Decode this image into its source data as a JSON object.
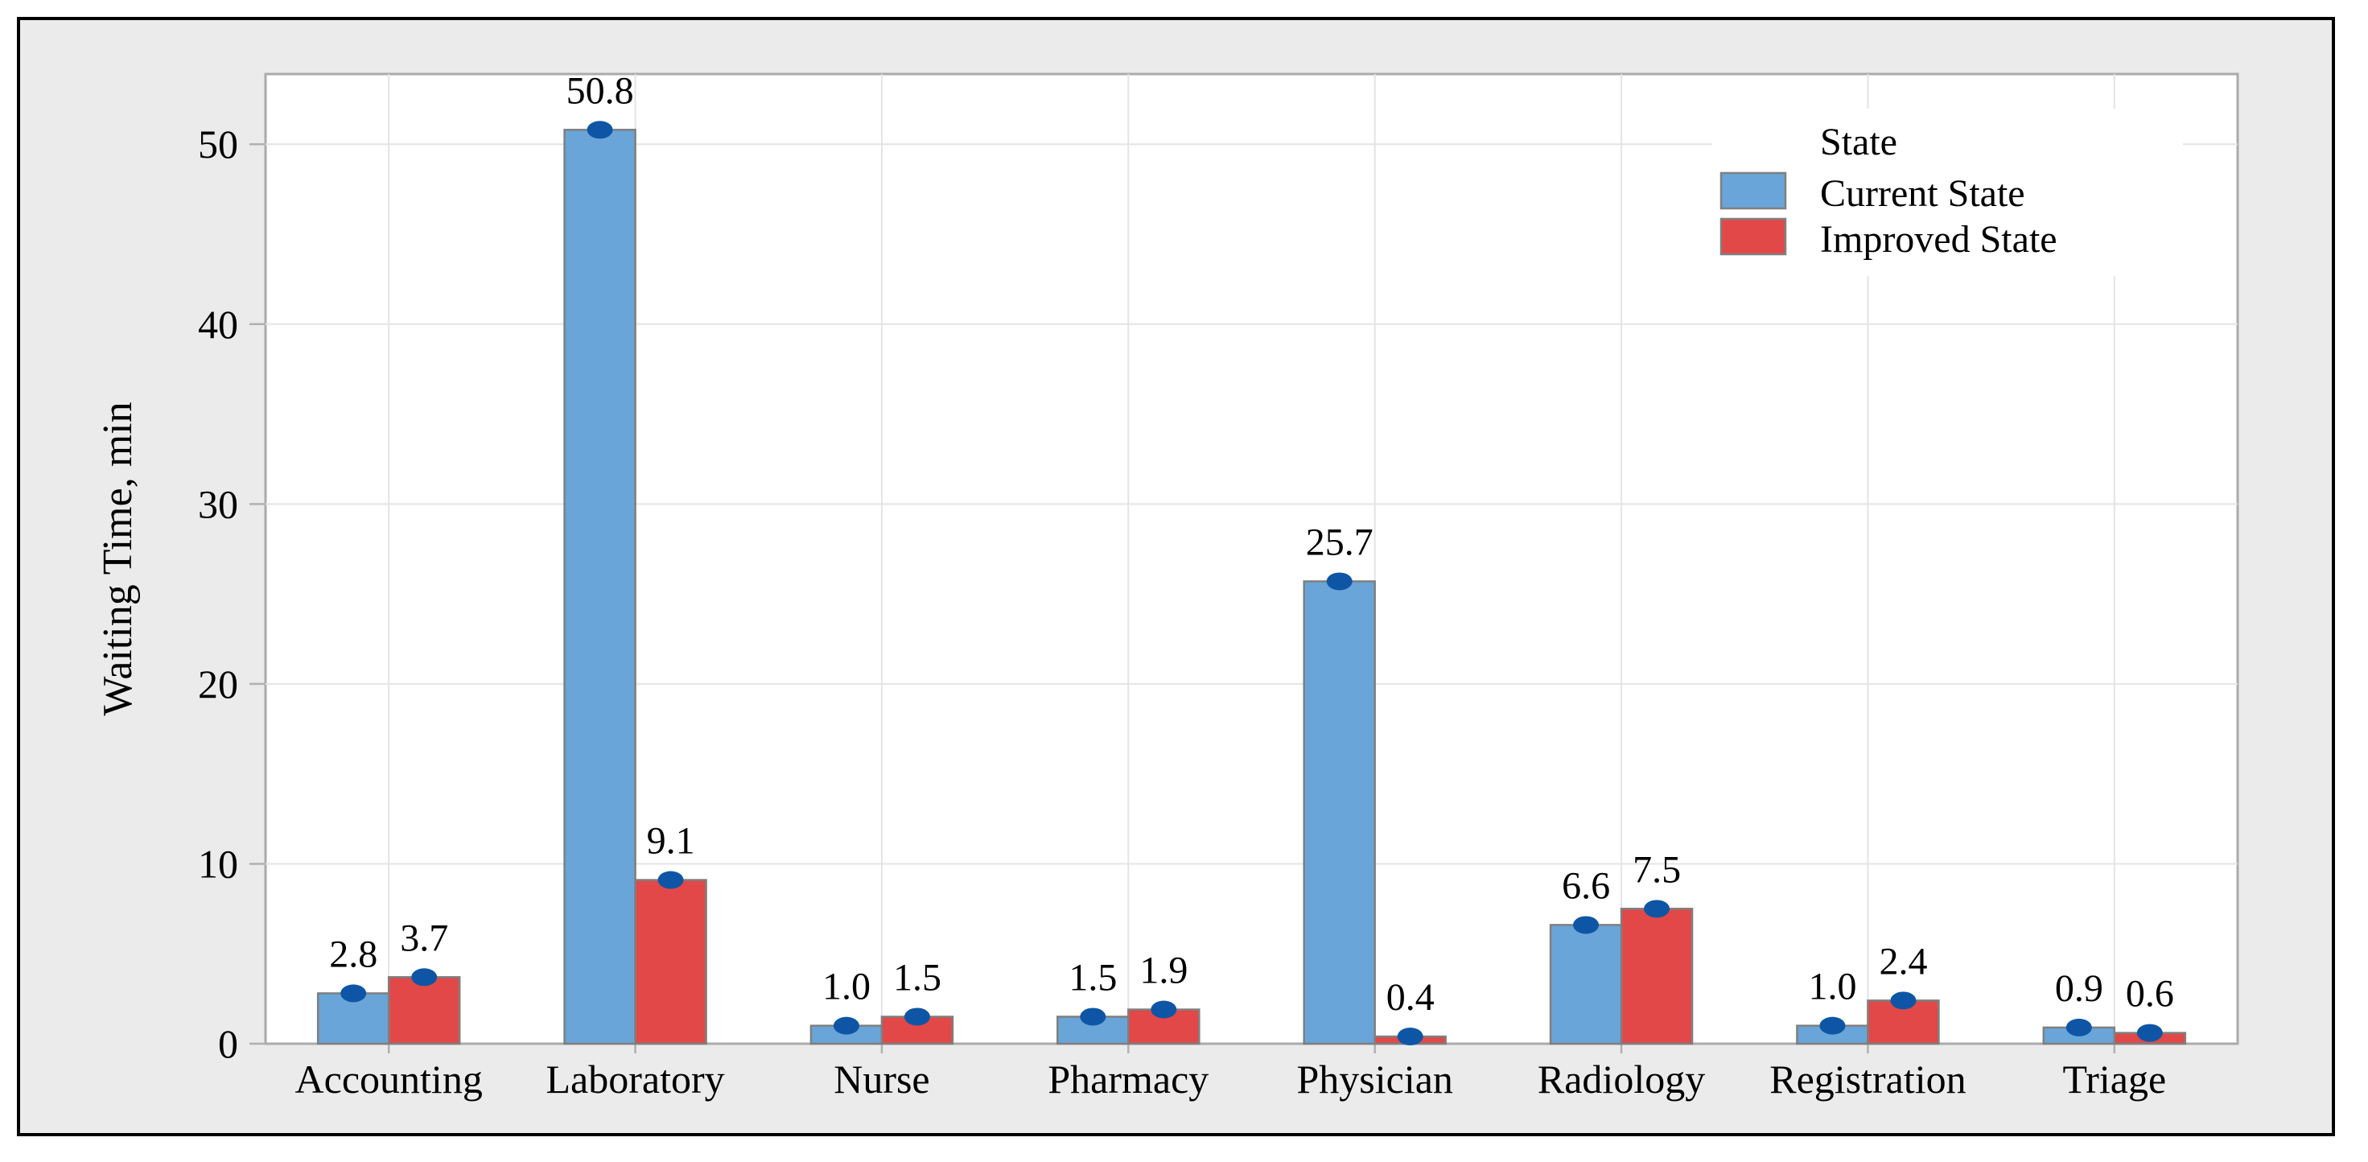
{
  "chart_data": {
    "type": "bar",
    "title": "",
    "xlabel": "",
    "ylabel": "Waiting Time, min",
    "categories": [
      "Accounting",
      "Laboratory",
      "Nurse",
      "Pharmacy",
      "Physician",
      "Radiology",
      "Registration",
      "Triage"
    ],
    "series": [
      {
        "name": "Current State",
        "color": "#69A5D9",
        "values": [
          2.8,
          50.8,
          1.0,
          1.5,
          25.7,
          6.6,
          1.0,
          0.9
        ]
      },
      {
        "name": "Improved State",
        "color": "#E24848",
        "values": [
          3.7,
          9.1,
          1.5,
          1.9,
          0.4,
          7.5,
          2.4,
          0.6
        ]
      }
    ],
    "value_labels": [
      "2.8",
      "3.7",
      "50.8",
      "9.1",
      "1.0",
      "1.5",
      "1.5",
      "1.9",
      "25.7",
      "0.4",
      "6.6",
      "7.5",
      "1.0",
      "2.4",
      "0.9",
      "0.6"
    ],
    "legend": {
      "title": "State",
      "position": "top-right",
      "entries": [
        "Current State",
        "Improved State"
      ]
    },
    "yticks": [
      0,
      10,
      20,
      30,
      40,
      50
    ],
    "ylim": [
      0,
      53.9
    ],
    "grid": true,
    "marker": {
      "shape": "ellipse",
      "color": "#0E56A5"
    },
    "colors": {
      "chart_bg": "#EBEBEB",
      "plot_bg": "#FFFFFF",
      "frame_border": "#000000",
      "plot_border": "#ABABAB",
      "grid_line": "#E4E4E4",
      "bar_border": "#7F7F7F",
      "swatch_border": "#808080",
      "tick": "#B0B0B0",
      "text": "#000000"
    }
  }
}
